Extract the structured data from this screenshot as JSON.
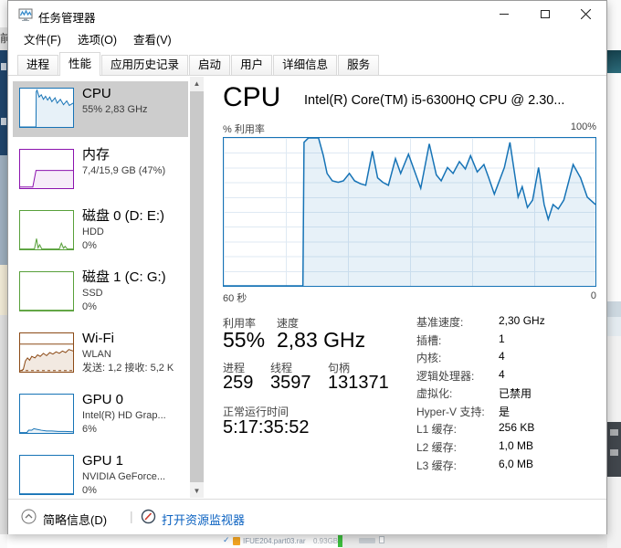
{
  "window": {
    "title": "任务管理器",
    "menu": [
      "文件(F)",
      "选项(O)",
      "查看(V)"
    ],
    "tabs": [
      {
        "label": "进程",
        "selected": false
      },
      {
        "label": "性能",
        "selected": true
      },
      {
        "label": "应用历史记录",
        "selected": false
      },
      {
        "label": "启动",
        "selected": false
      },
      {
        "label": "用户",
        "selected": false
      },
      {
        "label": "详细信息",
        "selected": false
      },
      {
        "label": "服务",
        "selected": false
      }
    ]
  },
  "colors": {
    "accent_blue": "#1673b6",
    "memory_purple": "#8b12ae",
    "disk_green": "#58a03a",
    "wifi_brown": "#8c4a16",
    "selected_gray": "#cdcdcd",
    "link_blue": "#0a61c0",
    "progress_green": "#3dbd3d"
  },
  "sidebar": {
    "items": [
      {
        "title": "CPU",
        "lines": [
          "55% 2,83 GHz"
        ],
        "selected": true,
        "chart": {
          "color": "#1673b6",
          "fill": "rgba(22,115,182,0.10)",
          "stroke": 1,
          "points": [
            [
              0,
              0
            ],
            [
              0.3,
              0
            ],
            [
              0.305,
              92
            ],
            [
              0.32,
              96
            ],
            [
              0.36,
              78
            ],
            [
              0.4,
              84
            ],
            [
              0.44,
              72
            ],
            [
              0.48,
              80
            ],
            [
              0.52,
              70
            ],
            [
              0.56,
              78
            ],
            [
              0.6,
              66
            ],
            [
              0.66,
              76
            ],
            [
              0.7,
              62
            ],
            [
              0.76,
              72
            ],
            [
              0.82,
              58
            ],
            [
              0.88,
              68
            ],
            [
              0.93,
              56
            ],
            [
              1,
              62
            ]
          ]
        }
      },
      {
        "title": "内存",
        "lines": [
          "7,4/15,9 GB (47%)"
        ],
        "selected": false,
        "chart": {
          "color": "#8b12ae",
          "fill": "rgba(139,18,174,0.08)",
          "stroke": 1,
          "points": [
            [
              0,
              3
            ],
            [
              0.24,
              3
            ],
            [
              0.3,
              46
            ],
            [
              1,
              46
            ]
          ]
        }
      },
      {
        "title": "磁盘 0 (D: E:)",
        "lines": [
          "HDD",
          "0%"
        ],
        "selected": false,
        "chart": {
          "color": "#58a03a",
          "fill": "rgba(88,160,58,0.10)",
          "stroke": 1,
          "points": [
            [
              0,
              1
            ],
            [
              0.27,
              1
            ],
            [
              0.31,
              28
            ],
            [
              0.34,
              4
            ],
            [
              0.37,
              12
            ],
            [
              0.41,
              1
            ],
            [
              0.74,
              1
            ],
            [
              0.78,
              16
            ],
            [
              0.82,
              3
            ],
            [
              0.85,
              8
            ],
            [
              0.89,
              1
            ],
            [
              1,
              1
            ]
          ]
        }
      },
      {
        "title": "磁盘 1 (C: G:)",
        "lines": [
          "SSD",
          "0%"
        ],
        "selected": false,
        "chart": {
          "color": "#58a03a",
          "stroke": 1,
          "points": [
            [
              0,
              1
            ],
            [
              1,
              1
            ]
          ]
        }
      },
      {
        "title": "Wi-Fi",
        "lines": [
          "WLAN",
          "发送: 1,2 接收: 5,2 K"
        ],
        "selected": false,
        "chart": {
          "color": "#8c4a16",
          "fill": "rgba(166,109,52,0.15)",
          "stroke": 1,
          "hline": 72,
          "dotted": [
            [
              0,
              3
            ],
            [
              1,
              3
            ]
          ],
          "points": [
            [
              0,
              2
            ],
            [
              0.06,
              6
            ],
            [
              0.1,
              28
            ],
            [
              0.14,
              36
            ],
            [
              0.18,
              30
            ],
            [
              0.22,
              40
            ],
            [
              0.28,
              36
            ],
            [
              0.33,
              44
            ],
            [
              0.38,
              40
            ],
            [
              0.44,
              48
            ],
            [
              0.5,
              42
            ],
            [
              0.56,
              50
            ],
            [
              0.62,
              46
            ],
            [
              0.68,
              52
            ],
            [
              0.74,
              48
            ],
            [
              0.8,
              54
            ],
            [
              0.86,
              50
            ],
            [
              0.92,
              58
            ],
            [
              1,
              54
            ]
          ]
        }
      },
      {
        "title": "GPU 0",
        "lines": [
          "Intel(R) HD Grap...",
          "6%"
        ],
        "selected": false,
        "chart": {
          "color": "#1673b6",
          "fill": "rgba(22,115,182,0.08)",
          "stroke": 1,
          "points": [
            [
              0,
              1
            ],
            [
              0.13,
              1
            ],
            [
              0.16,
              7
            ],
            [
              0.22,
              7
            ],
            [
              0.26,
              11
            ],
            [
              0.33,
              9
            ],
            [
              0.4,
              7
            ],
            [
              0.5,
              5
            ],
            [
              0.6,
              5
            ],
            [
              0.72,
              4
            ],
            [
              0.85,
              4
            ],
            [
              1,
              3
            ]
          ]
        }
      },
      {
        "title": "GPU 1",
        "lines": [
          "NVIDIA GeForce...",
          "0%"
        ],
        "selected": false,
        "chart": {
          "color": "#1673b6",
          "stroke": 1,
          "points": [
            [
              0,
              1
            ],
            [
              1,
              1
            ]
          ]
        }
      }
    ]
  },
  "main": {
    "cpu_title": "CPU",
    "cpu_subtitle": "Intel(R) Core(TM) i5-6300HQ CPU @ 2.30...",
    "chart_labels": {
      "y": "% 利用率",
      "y_max": "100%",
      "x_left": "60 秒",
      "x_right": "0"
    },
    "stats_primary": [
      {
        "label": "利用率",
        "value": "55%"
      },
      {
        "label": "速度",
        "value": "2,83 GHz"
      }
    ],
    "stats_secondary": [
      {
        "label": "进程",
        "value": "259"
      },
      {
        "label": "线程",
        "value": "3597"
      },
      {
        "label": "句柄",
        "value": "131371"
      }
    ],
    "uptime": {
      "label": "正常运行时间",
      "value": "5:17:35:52"
    },
    "details": [
      {
        "label": "基准速度:",
        "value": "2,30 GHz"
      },
      {
        "label": "插槽:",
        "value": "1"
      },
      {
        "label": "内核:",
        "value": "4"
      },
      {
        "label": "逻辑处理器:",
        "value": "4"
      },
      {
        "label": "虚拟化:",
        "value": "已禁用"
      },
      {
        "label": "Hyper-V 支持:",
        "value": "是"
      },
      {
        "label": "L1 缓存:",
        "value": "256 KB"
      },
      {
        "label": "L2 缓存:",
        "value": "1,0 MB"
      },
      {
        "label": "L3 缓存:",
        "value": "6,0 MB"
      }
    ]
  },
  "footer": {
    "summary_label": "简略信息(D)",
    "separator": "|",
    "open_resource_monitor": "打开资源监视器"
  },
  "background": {
    "left_edge_char": "前",
    "file_name": "IFUE204.part03.rar",
    "file_size": "0.93GB"
  },
  "chart_data": {
    "type": "area",
    "title": "CPU % 利用率",
    "xlabel": "60 秒 → 0",
    "ylabel": "% 利用率",
    "x_range_seconds": [
      60,
      0
    ],
    "ylim": [
      0,
      100
    ],
    "grid": true,
    "current_value_percent": 55,
    "series": [
      {
        "name": "CPU 利用率",
        "color": "#1673b6",
        "fill": "rgba(22,115,182,0.10)",
        "stroke": 1.5,
        "points": [
          [
            0,
            0
          ],
          [
            0.213,
            0
          ],
          [
            0.216,
            97
          ],
          [
            0.228,
            100
          ],
          [
            0.255,
            100
          ],
          [
            0.268,
            88
          ],
          [
            0.278,
            76
          ],
          [
            0.292,
            71
          ],
          [
            0.308,
            70
          ],
          [
            0.322,
            71
          ],
          [
            0.338,
            76
          ],
          [
            0.352,
            71
          ],
          [
            0.368,
            69
          ],
          [
            0.382,
            68
          ],
          [
            0.4,
            91
          ],
          [
            0.414,
            73
          ],
          [
            0.428,
            70
          ],
          [
            0.443,
            68
          ],
          [
            0.462,
            86
          ],
          [
            0.476,
            76
          ],
          [
            0.497,
            89
          ],
          [
            0.53,
            66
          ],
          [
            0.553,
            96
          ],
          [
            0.572,
            75
          ],
          [
            0.585,
            71
          ],
          [
            0.602,
            80
          ],
          [
            0.617,
            76
          ],
          [
            0.634,
            84
          ],
          [
            0.65,
            79
          ],
          [
            0.664,
            88
          ],
          [
            0.682,
            77
          ],
          [
            0.7,
            82
          ],
          [
            0.713,
            73
          ],
          [
            0.728,
            62
          ],
          [
            0.755,
            80
          ],
          [
            0.77,
            97
          ],
          [
            0.792,
            60
          ],
          [
            0.803,
            67
          ],
          [
            0.817,
            53
          ],
          [
            0.831,
            58
          ],
          [
            0.847,
            80
          ],
          [
            0.862,
            55
          ],
          [
            0.873,
            45
          ],
          [
            0.886,
            55
          ],
          [
            0.9,
            52
          ],
          [
            0.915,
            58
          ],
          [
            0.94,
            82
          ],
          [
            0.96,
            73
          ],
          [
            0.978,
            60
          ],
          [
            1,
            55
          ]
        ]
      }
    ]
  }
}
